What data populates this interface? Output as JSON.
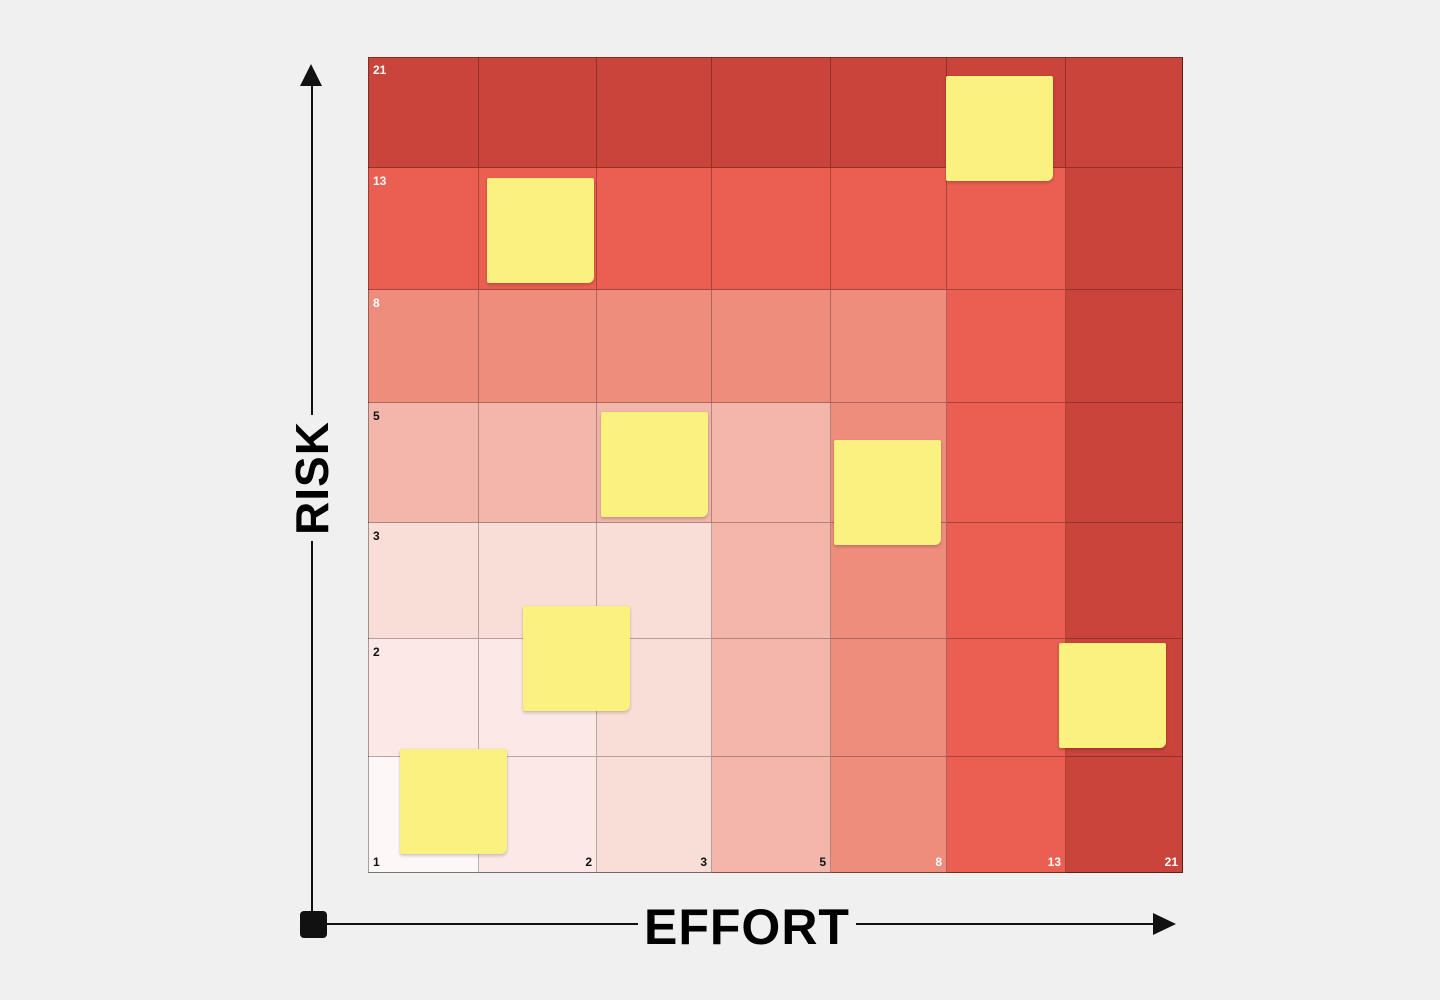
{
  "matrix": {
    "x_axis_title": "EFFORT",
    "y_axis_title": "RISK",
    "x_scale": [
      "1",
      "2",
      "3",
      "5",
      "8",
      "13",
      "21"
    ],
    "y_scale_top_to_bottom": [
      "21",
      "13",
      "8",
      "5",
      "3",
      "2",
      "1"
    ],
    "colors": {
      "level_1": "#fdf8f7",
      "level_2": "#fce8e5",
      "level_3": "#f9ddd7",
      "level_4": "#f3b6ab",
      "level_5": "#ef8d7d",
      "level_6": "#ea5f51",
      "level_7": "#c9443a",
      "sticky_note": "#fbf17e",
      "background": "#f0f0f0"
    },
    "cell_color_levels_top_to_bottom": [
      [
        7,
        7,
        7,
        7,
        7,
        7,
        7
      ],
      [
        6,
        6,
        6,
        6,
        6,
        6,
        7
      ],
      [
        5,
        5,
        5,
        5,
        5,
        6,
        7
      ],
      [
        4,
        4,
        4,
        4,
        5,
        6,
        7
      ],
      [
        3,
        3,
        3,
        4,
        5,
        6,
        7
      ],
      [
        2,
        2,
        3,
        4,
        5,
        6,
        7
      ],
      [
        1,
        2,
        3,
        4,
        5,
        6,
        7
      ]
    ],
    "sticky_notes": [
      {
        "effort": "13",
        "risk": "21"
      },
      {
        "effort": "2",
        "risk": "13"
      },
      {
        "effort": "3",
        "risk": "5"
      },
      {
        "effort": "8",
        "risk": "5"
      },
      {
        "effort": "2",
        "risk": "2"
      },
      {
        "effort": "21",
        "risk": "2"
      },
      {
        "effort": "1",
        "risk": "1"
      }
    ]
  }
}
